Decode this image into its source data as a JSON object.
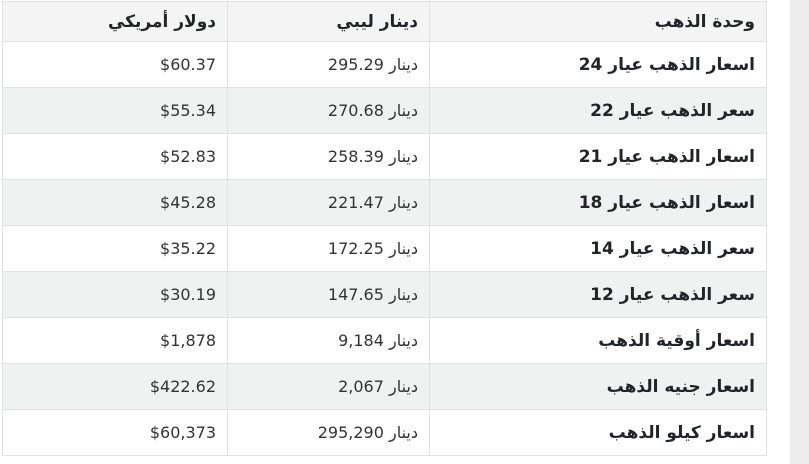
{
  "colors": {
    "page_bg": "#ffffff",
    "strip_bg": "#ececec",
    "header_bg": "#f4f4f4",
    "stripe_bg": "#f0f1f1",
    "border": "#e2e2e2",
    "text_strong": "#212529",
    "text_num": "#333333"
  },
  "table": {
    "columns": [
      {
        "key": "unit",
        "label": "وحدة الذهب"
      },
      {
        "key": "lyd",
        "label": "دينار ليبي"
      },
      {
        "key": "usd",
        "label": "دولار أمريكي"
      }
    ],
    "rows": [
      {
        "unit": "اسعار الذهب عيار 24",
        "lyd": "295.29 دينار",
        "usd": "$60.37"
      },
      {
        "unit": "سعر الذهب عيار 22",
        "lyd": "270.68 دينار",
        "usd": "$55.34"
      },
      {
        "unit": "اسعار الذهب عيار 21",
        "lyd": "258.39 دينار",
        "usd": "$52.83"
      },
      {
        "unit": "اسعار الذهب عيار 18",
        "lyd": "221.47 دينار",
        "usd": "$45.28"
      },
      {
        "unit": "سعر الذهب عيار 14",
        "lyd": "172.25 دينار",
        "usd": "$35.22"
      },
      {
        "unit": "سعر الذهب عيار 12",
        "lyd": "147.65 دينار",
        "usd": "$30.19"
      },
      {
        "unit": "اسعار أوقية الذهب",
        "lyd": "9,184 دينار",
        "usd": "$1,878"
      },
      {
        "unit": "اسعار جنيه الذهب",
        "lyd": "2,067 دينار",
        "usd": "$422.62"
      },
      {
        "unit": "اسعار كيلو الذهب",
        "lyd": "295,290 دينار",
        "usd": "$60,373"
      }
    ]
  }
}
